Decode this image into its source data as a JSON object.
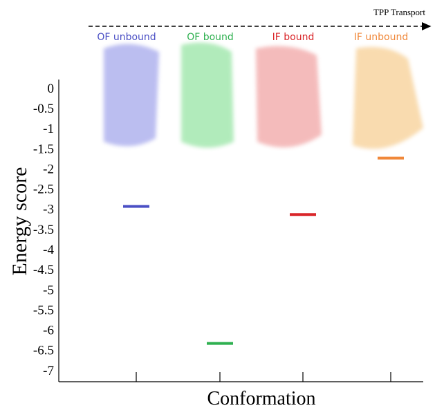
{
  "chart_data": {
    "type": "level",
    "annotation": "TPP Transport",
    "x_label": "Conformation",
    "y_label": "Energy score",
    "categories": [
      "OF unbound",
      "OF bound",
      "IF bound",
      "IF unbound"
    ],
    "series": [
      {
        "colors": [
          "#4a4fc4",
          "#2fb050",
          "#d9262a",
          "#f0883a"
        ],
        "values": [
          -2.9,
          -6.3,
          -3.1,
          -1.7
        ]
      }
    ],
    "ylim": [
      -7.25,
      0.25
    ],
    "yticks": [
      0,
      -0.5,
      -1,
      -1.5,
      -2,
      -2.5,
      -3,
      -3.5,
      -4,
      -4.5,
      -5,
      -5.5,
      -6,
      -6.5,
      -7
    ]
  }
}
